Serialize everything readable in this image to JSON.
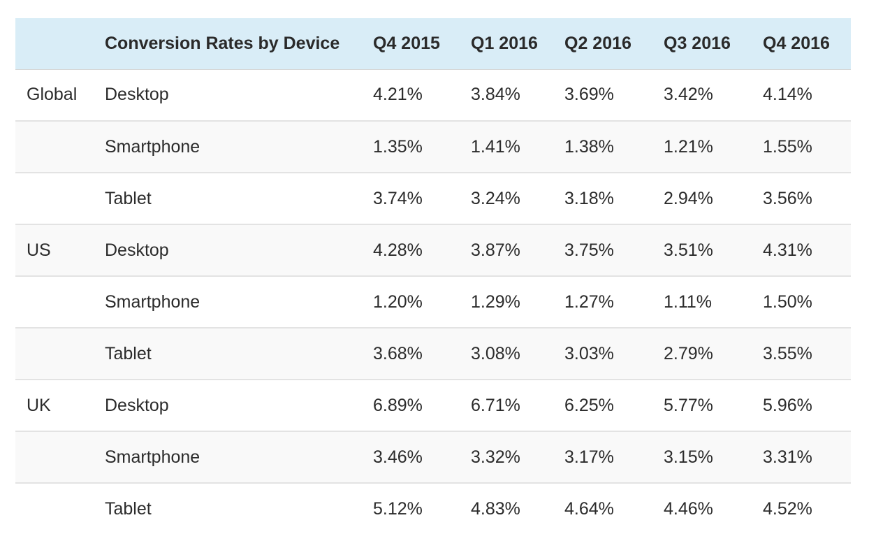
{
  "chart_data": {
    "type": "table",
    "title": "Conversion Rates by Device",
    "columns": [
      "Q4 2015",
      "Q1 2016",
      "Q2 2016",
      "Q3 2016",
      "Q4 2016"
    ],
    "rows": [
      {
        "region": "Global",
        "device": "Desktop",
        "values": [
          "4.21%",
          "3.84%",
          "3.69%",
          "3.42%",
          "4.14%"
        ]
      },
      {
        "region": "",
        "device": "Smartphone",
        "values": [
          "1.35%",
          "1.41%",
          "1.38%",
          "1.21%",
          "1.55%"
        ]
      },
      {
        "region": "",
        "device": "Tablet",
        "values": [
          "3.74%",
          "3.24%",
          "3.18%",
          "2.94%",
          "3.56%"
        ]
      },
      {
        "region": "US",
        "device": "Desktop",
        "values": [
          "4.28%",
          "3.87%",
          "3.75%",
          "3.51%",
          "4.31%"
        ]
      },
      {
        "region": "",
        "device": "Smartphone",
        "values": [
          "1.20%",
          "1.29%",
          "1.27%",
          "1.11%",
          "1.50%"
        ]
      },
      {
        "region": "",
        "device": "Tablet",
        "values": [
          "3.68%",
          "3.08%",
          "3.03%",
          "2.79%",
          "3.55%"
        ]
      },
      {
        "region": "UK",
        "device": "Desktop",
        "values": [
          "6.89%",
          "6.71%",
          "6.25%",
          "5.77%",
          "5.96%"
        ]
      },
      {
        "region": "",
        "device": "Smartphone",
        "values": [
          "3.46%",
          "3.32%",
          "3.17%",
          "3.15%",
          "3.31%"
        ]
      },
      {
        "region": "",
        "device": "Tablet",
        "values": [
          "5.12%",
          "4.83%",
          "4.64%",
          "4.46%",
          "4.52%"
        ]
      }
    ]
  },
  "colors": {
    "header_bg": "#d9edf7",
    "row_border": "#e3e3e3",
    "text": "#2b2b2b"
  }
}
